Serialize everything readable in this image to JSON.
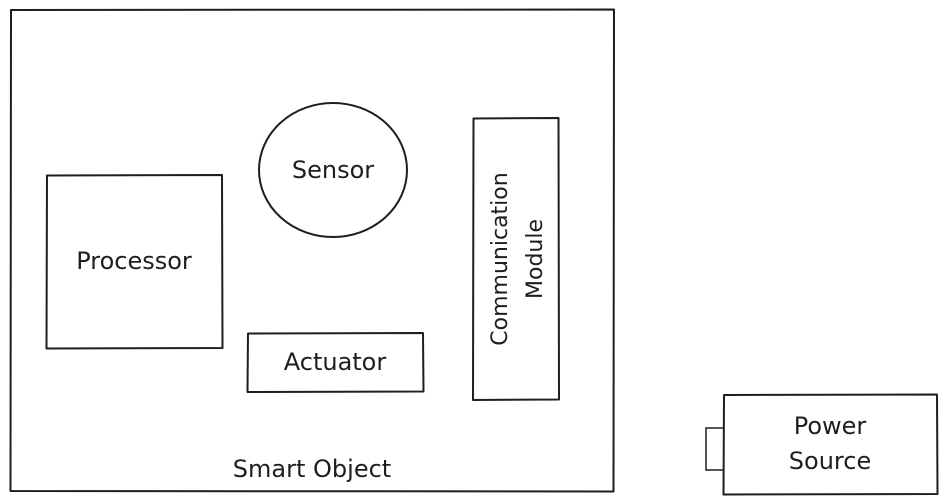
{
  "diagram": {
    "container": {
      "label": "Smart Object"
    },
    "components": {
      "processor": {
        "label": "Processor"
      },
      "sensor": {
        "label": "Sensor"
      },
      "actuator": {
        "label": "Actuator"
      },
      "communication_module": {
        "label_line1": "Communication",
        "label_line2": "Module"
      }
    },
    "external": {
      "power_source": {
        "label_line1": "Power",
        "label_line2": "Source"
      }
    }
  }
}
